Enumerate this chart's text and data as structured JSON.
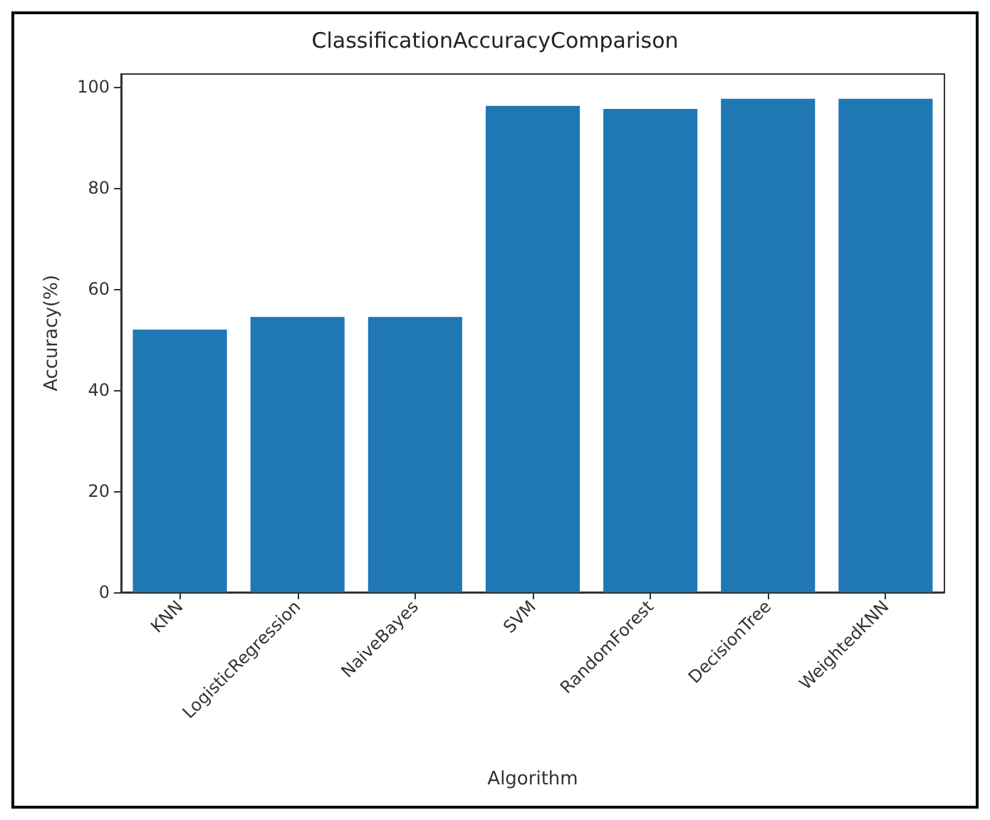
{
  "chart_data": {
    "type": "bar",
    "title": "ClassificationAccuracyComparison",
    "xlabel": "Algorithm",
    "ylabel": "Accuracy(%)",
    "categories": [
      "KNN",
      "LogisticRegression",
      "NaiveBayes",
      "SVM",
      "RandomForest",
      "DecisionTree",
      "WeightedKNN"
    ],
    "values": [
      52.0,
      54.5,
      54.5,
      96.3,
      95.7,
      97.7,
      97.7
    ],
    "color": "#1f77b4",
    "ylim": [
      0,
      102.6
    ],
    "yticks": [
      0,
      20,
      40,
      60,
      80,
      100
    ],
    "grid": false
  }
}
